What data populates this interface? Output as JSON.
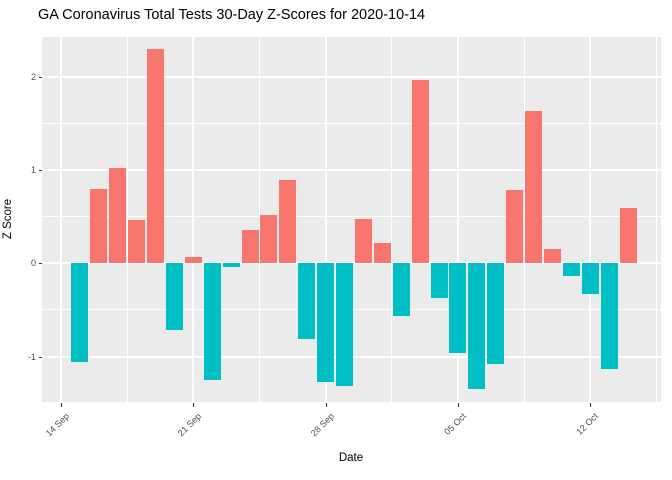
{
  "title": "GA Coronavirus Total Tests 30-Day Z-Scores for 2020-10-14",
  "chart_data": {
    "type": "bar",
    "title": "GA Coronavirus Total Tests 30-Day Z-Scores for 2020-10-14",
    "xlabel": "Date",
    "ylabel": "Z Score",
    "x": [
      "2020-09-15",
      "2020-09-16",
      "2020-09-17",
      "2020-09-18",
      "2020-09-19",
      "2020-09-20",
      "2020-09-21",
      "2020-09-22",
      "2020-09-23",
      "2020-09-24",
      "2020-09-25",
      "2020-09-26",
      "2020-09-27",
      "2020-09-28",
      "2020-09-29",
      "2020-09-30",
      "2020-10-01",
      "2020-10-02",
      "2020-10-03",
      "2020-10-04",
      "2020-10-05",
      "2020-10-06",
      "2020-10-07",
      "2020-10-08",
      "2020-10-09",
      "2020-10-10",
      "2020-10-11",
      "2020-10-12",
      "2020-10-13",
      "2020-10-14"
    ],
    "values": [
      -1.06,
      0.8,
      1.02,
      0.46,
      2.3,
      -0.71,
      0.07,
      -1.25,
      -0.04,
      0.36,
      0.52,
      0.89,
      -0.81,
      -1.27,
      -1.31,
      0.48,
      0.22,
      -0.57,
      1.96,
      -0.37,
      -0.96,
      -1.35,
      -1.08,
      0.79,
      1.63,
      0.15,
      -0.14,
      -0.33,
      -1.13,
      0.59
    ],
    "x_tick_labels": [
      "14 Sep",
      "21 Sep",
      "28 Sep",
      "05 Oct",
      "12 Oct"
    ],
    "x_tick_dates": [
      "2020-09-14",
      "2020-09-21",
      "2020-09-28",
      "2020-10-05",
      "2020-10-12"
    ],
    "y_ticks": [
      -1,
      0,
      1,
      2
    ],
    "y_minor_ticks": [
      -0.5,
      0.5,
      1.5
    ],
    "ylim": [
      -1.49,
      2.42
    ],
    "legend_position": "none",
    "grid": true,
    "colors": {
      "positive_bar": "#F8766D",
      "negative_bar": "#00BFC4",
      "panel_background": "#EBEBEB",
      "grid_line": "#FFFFFF",
      "axis_text": "#4D4D4D",
      "tick_mark": "#333333"
    }
  }
}
